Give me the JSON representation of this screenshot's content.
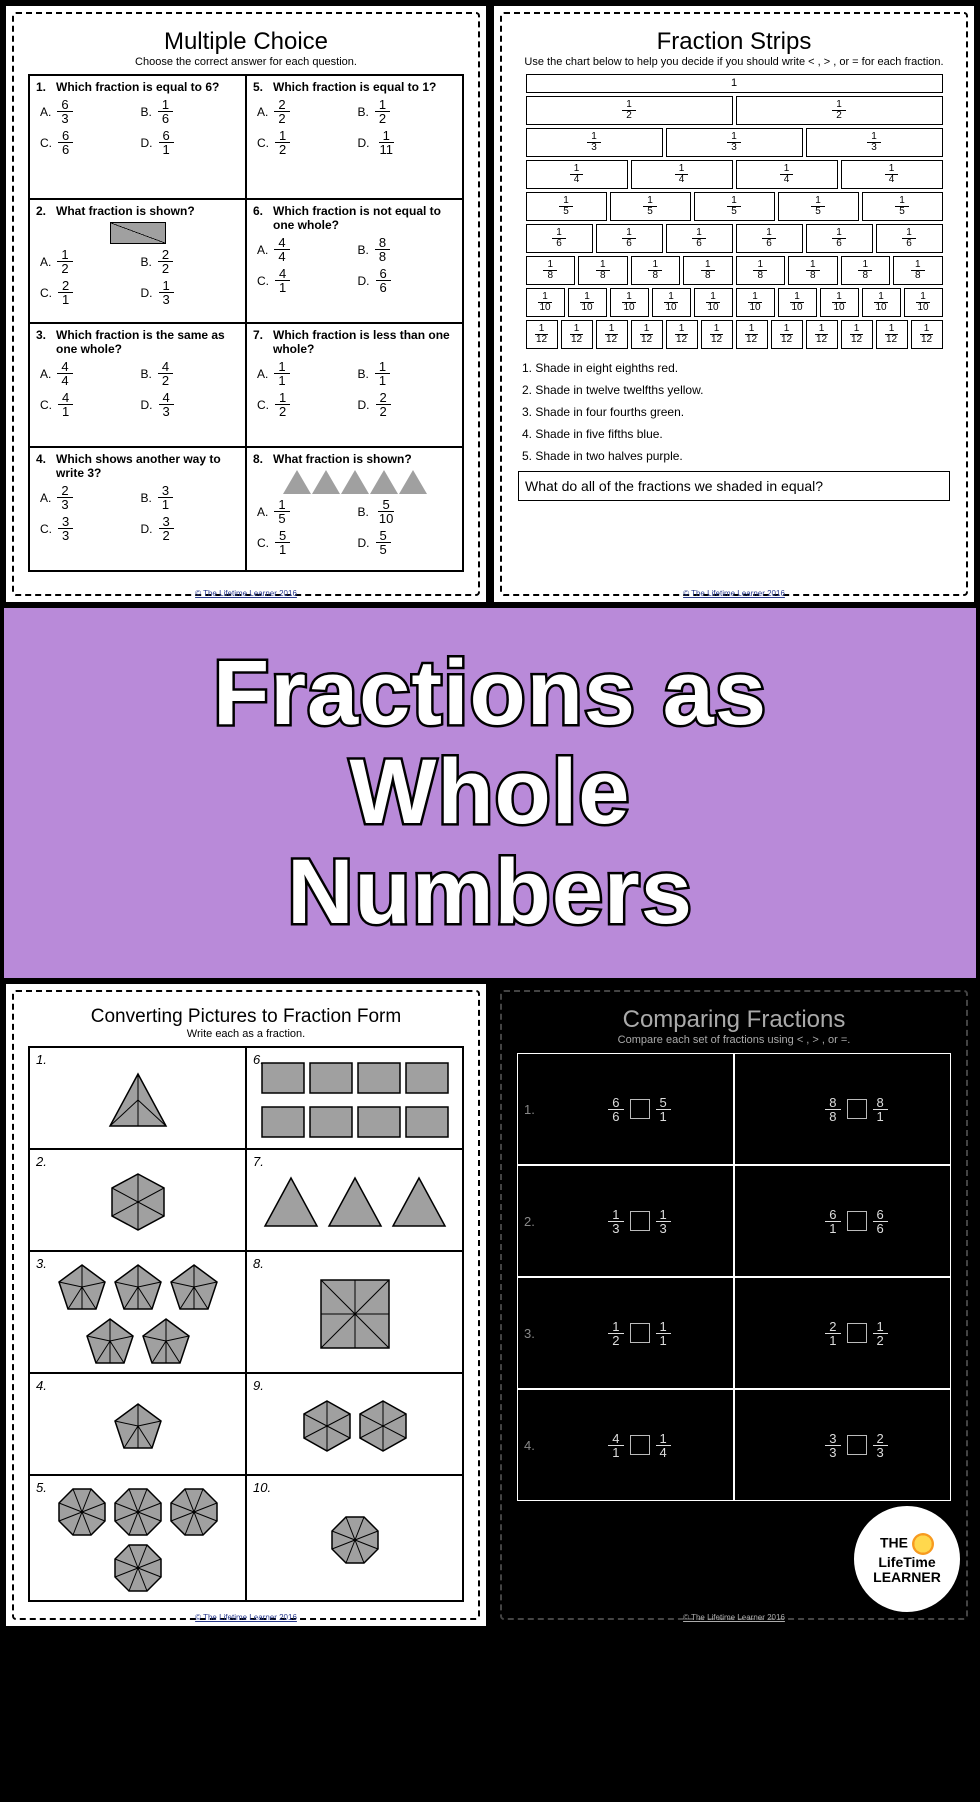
{
  "colors": {
    "banner_bg": "#b98ad9",
    "banner_text": "#ffffff",
    "banner_stroke": "#000000",
    "shape_fill": "#a0a0a0",
    "shape_stroke": "#000000",
    "footer_link": "#2a3b8f"
  },
  "banner": {
    "line1": "Fractions as",
    "line2": "Whole",
    "line3": "Numbers"
  },
  "footer_text": "© The Lifetime Learner 2016",
  "multiple_choice": {
    "title": "Multiple Choice",
    "subtitle": "Choose the correct answer for each question.",
    "cells": [
      {
        "n": "1.",
        "q": "Which fraction is equal to 6?",
        "opts": [
          [
            "A.",
            "6",
            "3"
          ],
          [
            "B.",
            "1",
            "6"
          ],
          [
            "C.",
            "6",
            "6"
          ],
          [
            "D.",
            "6",
            "1"
          ]
        ]
      },
      {
        "n": "5.",
        "q": "Which fraction is equal to 1?",
        "opts": [
          [
            "A.",
            "2",
            "2"
          ],
          [
            "B.",
            "1",
            "2"
          ],
          [
            "C.",
            "1",
            "2"
          ],
          [
            "D.",
            "1",
            "11"
          ]
        ]
      },
      {
        "n": "2.",
        "q": "What fraction is shown?",
        "diagram": "rect",
        "opts": [
          [
            "A.",
            "1",
            "2"
          ],
          [
            "B.",
            "2",
            "2"
          ],
          [
            "C.",
            "2",
            "1"
          ],
          [
            "D.",
            "1",
            "3"
          ]
        ]
      },
      {
        "n": "6.",
        "q": "Which fraction is not equal to one whole?",
        "opts": [
          [
            "A.",
            "4",
            "4"
          ],
          [
            "B.",
            "8",
            "8"
          ],
          [
            "C.",
            "4",
            "1"
          ],
          [
            "D.",
            "6",
            "6"
          ]
        ]
      },
      {
        "n": "3.",
        "q": "Which fraction is the same as one whole?",
        "opts": [
          [
            "A.",
            "4",
            "4"
          ],
          [
            "B.",
            "4",
            "2"
          ],
          [
            "C.",
            "4",
            "1"
          ],
          [
            "D.",
            "4",
            "3"
          ]
        ]
      },
      {
        "n": "7.",
        "q": "Which fraction is less than one whole?",
        "opts": [
          [
            "A.",
            "1",
            "1"
          ],
          [
            "B.",
            "1",
            "1"
          ],
          [
            "C.",
            "1",
            "2"
          ],
          [
            "D.",
            "2",
            "2"
          ]
        ]
      },
      {
        "n": "4.",
        "q": "Which shows another way to write 3?",
        "opts": [
          [
            "A.",
            "2",
            "3"
          ],
          [
            "B.",
            "3",
            "1"
          ],
          [
            "C.",
            "3",
            "3"
          ],
          [
            "D.",
            "3",
            "2"
          ]
        ]
      },
      {
        "n": "8.",
        "q": "What fraction is shown?",
        "diagram": "tris",
        "opts": [
          [
            "A.",
            "1",
            "5"
          ],
          [
            "B.",
            "5",
            "10"
          ],
          [
            "C.",
            "5",
            "1"
          ],
          [
            "D.",
            "5",
            "5"
          ]
        ]
      }
    ]
  },
  "fraction_strips": {
    "title": "Fraction Strips",
    "subtitle": "Use the chart below to help you decide if you should write < , > , or = for each fraction.",
    "rows": [
      1,
      2,
      3,
      4,
      5,
      6,
      8,
      10,
      12
    ],
    "instructions": [
      "1. Shade in eight eighths red.",
      "2. Shade in twelve twelfths yellow.",
      "3. Shade in four fourths green.",
      "4. Shade in five fifths blue.",
      "5. Shade in two halves purple."
    ],
    "question": "What do all of the fractions we shaded in equal?"
  },
  "converting": {
    "title": "Converting Pictures to Fraction Form",
    "subtitle": "Write each as a fraction.",
    "cells": [
      {
        "n": "1.",
        "shape": "tri1"
      },
      {
        "n": "6.",
        "shape": "rects8"
      },
      {
        "n": "2.",
        "shape": "hex1"
      },
      {
        "n": "7.",
        "shape": "tris3"
      },
      {
        "n": "3.",
        "shape": "pent5"
      },
      {
        "n": "8.",
        "shape": "sq8"
      },
      {
        "n": "4.",
        "shape": "pent1"
      },
      {
        "n": "9.",
        "shape": "hex2"
      },
      {
        "n": "5.",
        "shape": "oct4"
      },
      {
        "n": "10.",
        "shape": "oct1"
      }
    ]
  },
  "comparing": {
    "title": "Comparing Fractions",
    "subtitle": "Compare each set of fractions using < , > , or =.",
    "rows": [
      {
        "n": "1.",
        "a": [
          "6",
          "6"
        ],
        "b": [
          "5",
          "1"
        ]
      },
      {
        "n": "",
        "a": [
          "8",
          "8"
        ],
        "b": [
          "8",
          "1"
        ]
      },
      {
        "n": "2.",
        "a": [
          "1",
          "3"
        ],
        "b": [
          "1",
          "3"
        ]
      },
      {
        "n": "",
        "a": [
          "6",
          "1"
        ],
        "b": [
          "6",
          "6"
        ]
      },
      {
        "n": "3.",
        "a": [
          "1",
          "2"
        ],
        "b": [
          "1",
          "1"
        ]
      },
      {
        "n": "",
        "a": [
          "2",
          "1"
        ],
        "b": [
          "1",
          "2"
        ]
      },
      {
        "n": "4.",
        "a": [
          "4",
          "1"
        ],
        "b": [
          "1",
          "4"
        ]
      },
      {
        "n": "",
        "a": [
          "3",
          "3"
        ],
        "b": [
          "2",
          "3"
        ]
      }
    ]
  },
  "logo": {
    "l1": "THE",
    "l2": "LifeTime",
    "l3": "LEARNER"
  }
}
